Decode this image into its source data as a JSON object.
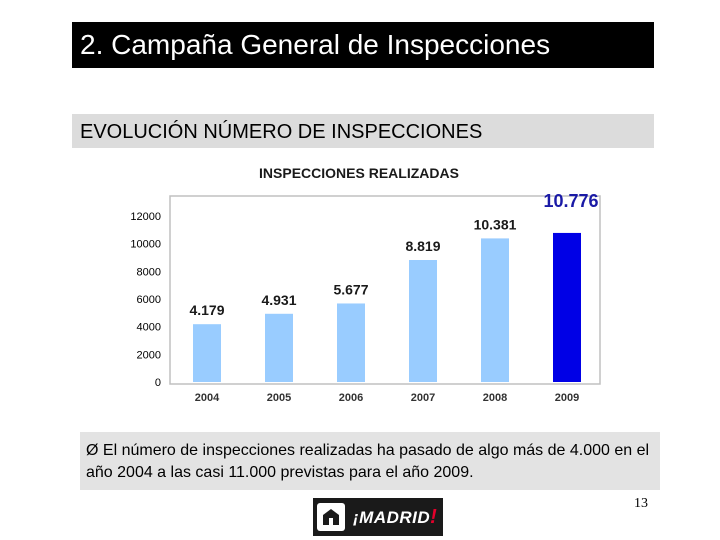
{
  "slide": {
    "title": "2. Campaña General de Inspecciones",
    "subtitle": "EVOLUCIÓN NÚMERO DE INSPECCIONES",
    "note_bullet": "Ø",
    "note_text": "El número de inspecciones realizadas ha pasado de algo más de 4.000 en el año 2004 a las casi 11.000 previstas para el año 2009.",
    "page_number": "13"
  },
  "logo": {
    "open_mark": "¡",
    "word": "MADRID",
    "close_mark": "!"
  },
  "colors": {
    "bar_default": "#99ccff",
    "bar_highlight": "#0000e6",
    "highlight_label": "#1a1aa6",
    "frame": "#c0c0c0"
  },
  "chart_data": {
    "type": "bar",
    "title": "INSPECCIONES REALIZADAS",
    "categories": [
      "2004",
      "2005",
      "2006",
      "2007",
      "2008",
      "2009"
    ],
    "values": [
      4179,
      4931,
      5677,
      8819,
      10381,
      10776
    ],
    "data_labels": [
      "4.179",
      "4.931",
      "5.677",
      "8.819",
      "10.381",
      "10.776"
    ],
    "highlight_index": 5,
    "ylim": [
      0,
      12000
    ],
    "yticks": [
      0,
      2000,
      4000,
      6000,
      8000,
      10000,
      12000
    ],
    "ytick_labels": [
      "0",
      "2000",
      "4000",
      "6000",
      "8000",
      "10000",
      "12000"
    ],
    "grid": false,
    "legend": "none"
  }
}
